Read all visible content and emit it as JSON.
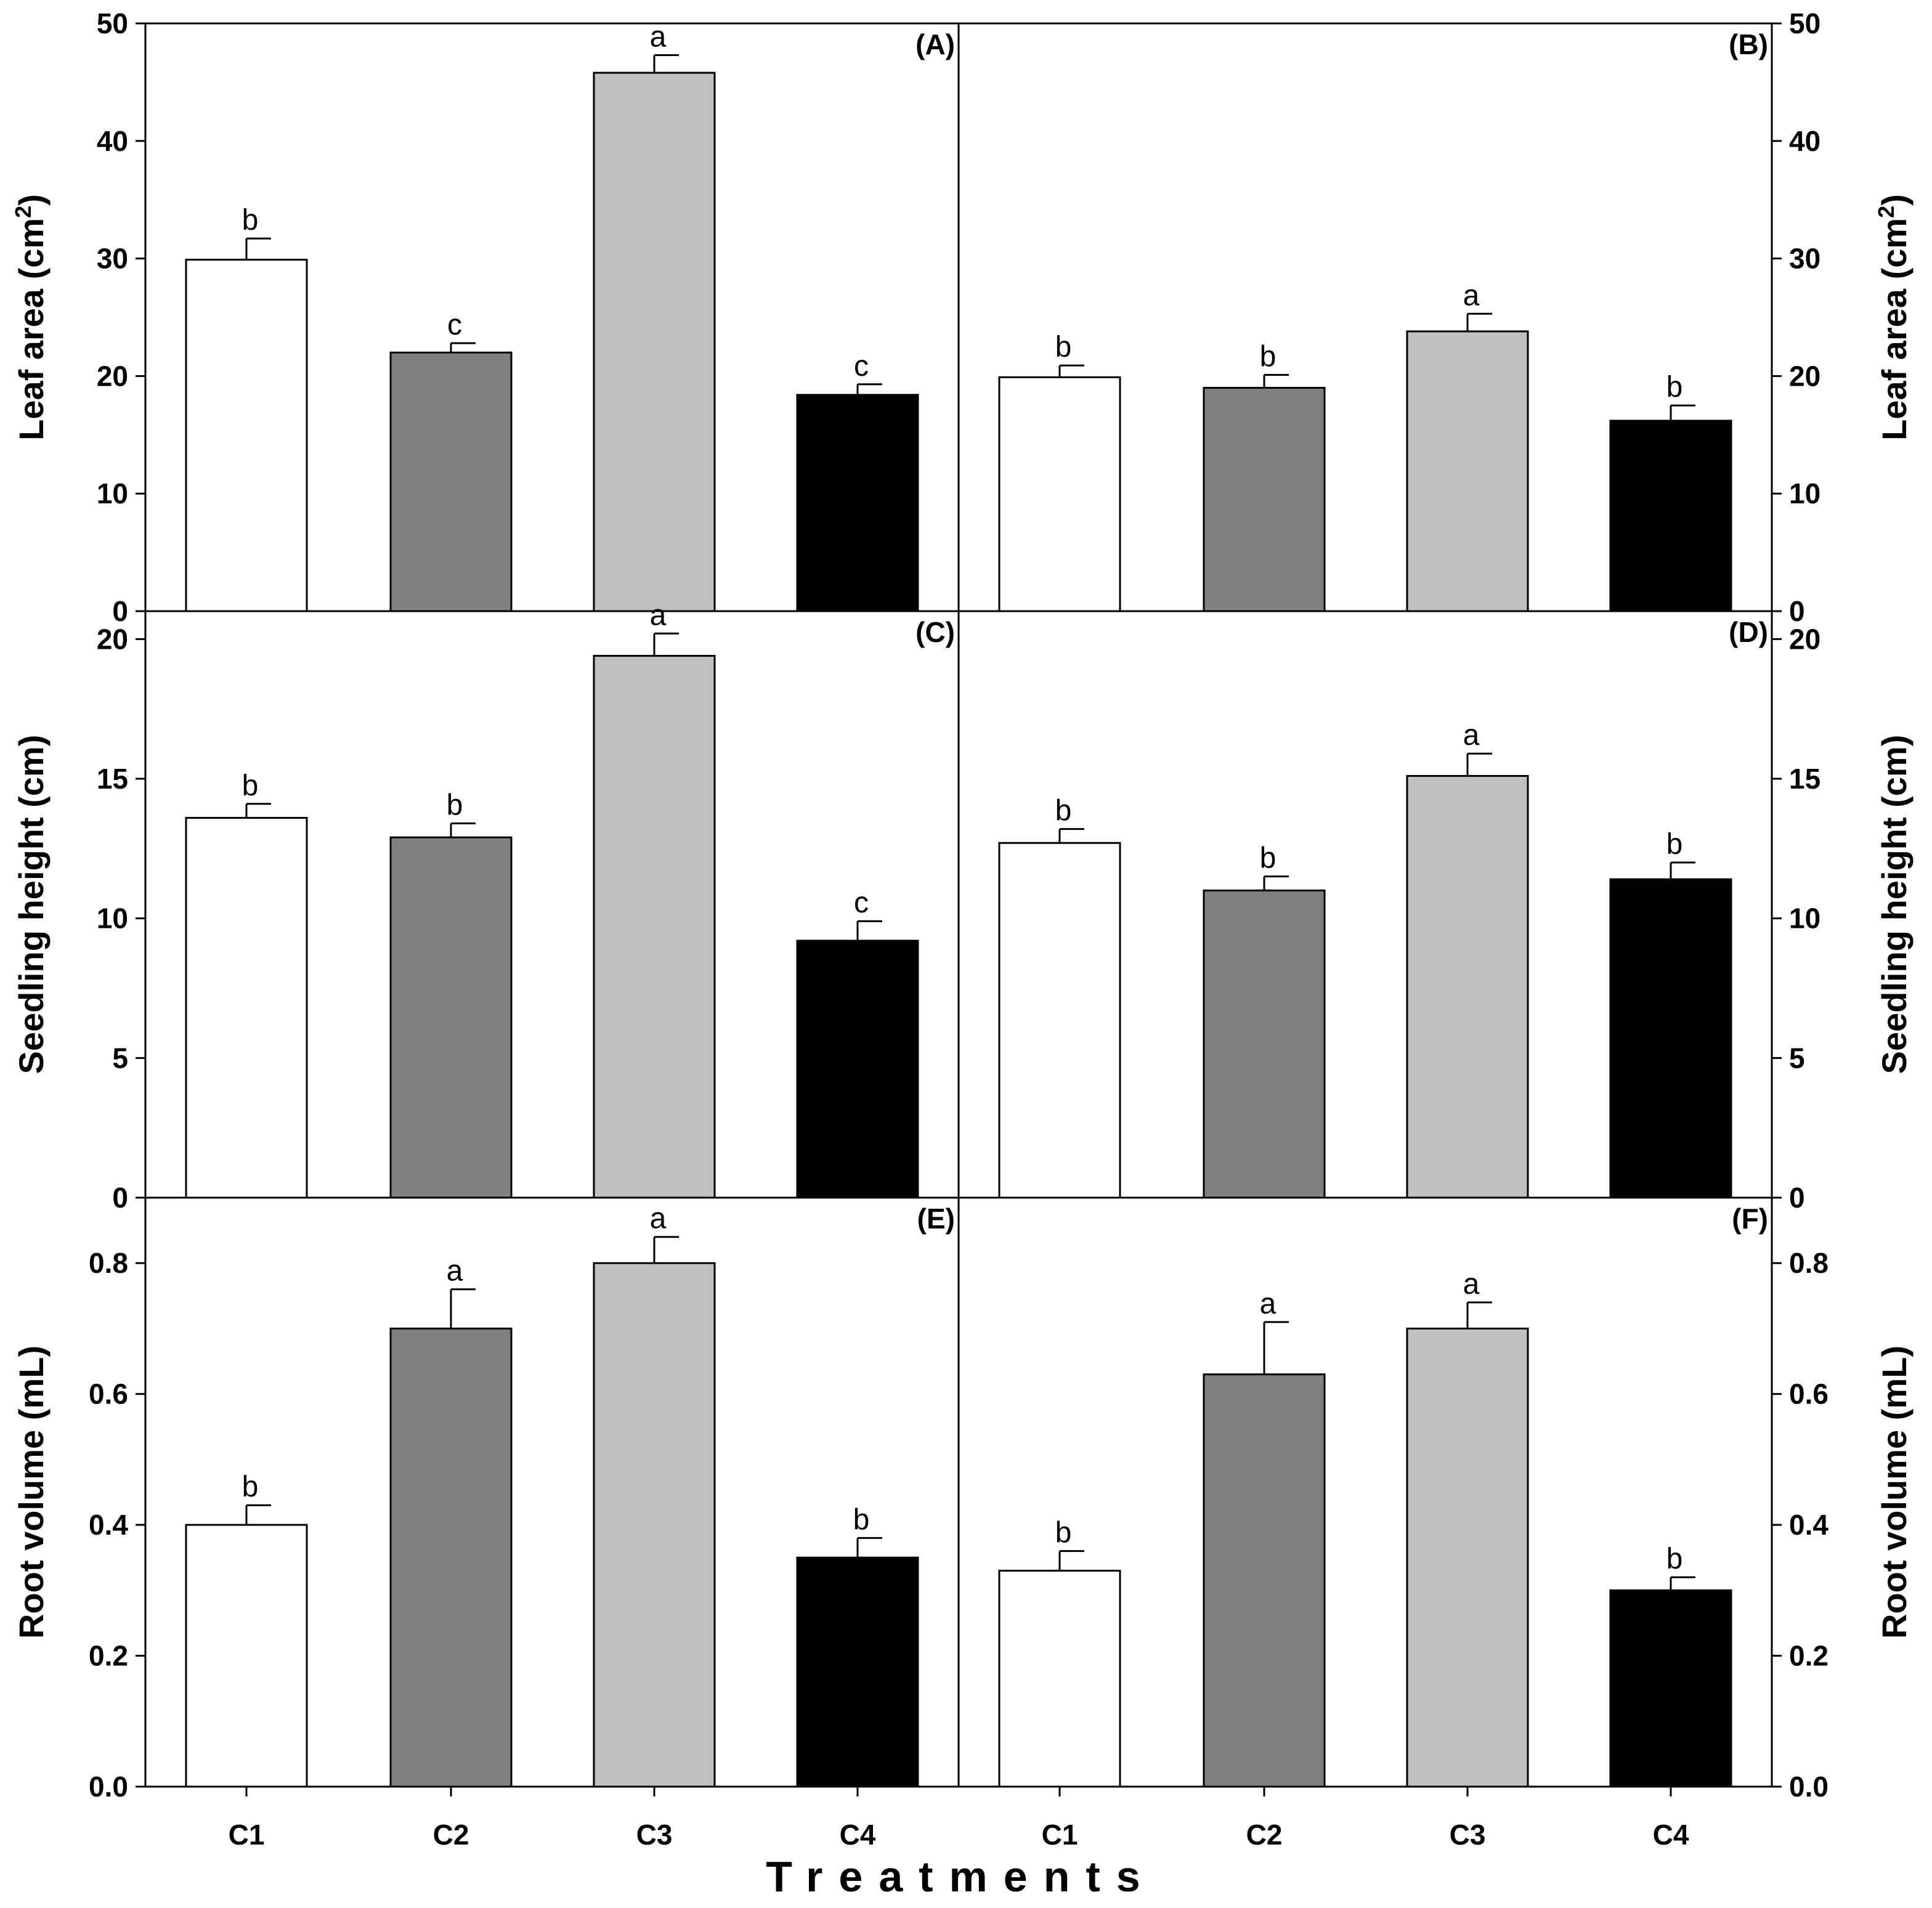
{
  "figure": {
    "x_title": "Treatments",
    "categories": [
      "C1",
      "C2",
      "C3",
      "C4"
    ],
    "bar_colors": [
      "#ffffff",
      "#808080",
      "#c0c0c0",
      "#000000"
    ]
  },
  "chart_data": [
    {
      "type": "bar",
      "panel": "(A)",
      "ylabel": "Leaf area (cm2)",
      "ylim": [
        0,
        50
      ],
      "yticks": [
        "0",
        "10",
        "20",
        "30",
        "40",
        "50"
      ],
      "categories": [
        "C1",
        "C2",
        "C3",
        "C4"
      ],
      "values": [
        29.9,
        22.0,
        45.8,
        18.4
      ],
      "errors": [
        1.8,
        0.8,
        1.5,
        0.9
      ],
      "letters": [
        "b",
        "c",
        "a",
        "c"
      ]
    },
    {
      "type": "bar",
      "panel": "(B)",
      "ylabel": "Leaf area (cm2)",
      "ylim": [
        0,
        50
      ],
      "yticks": [
        "0",
        "10",
        "20",
        "30",
        "40",
        "50"
      ],
      "categories": [
        "C1",
        "C2",
        "C3",
        "C4"
      ],
      "values": [
        19.9,
        19.0,
        23.8,
        16.2
      ],
      "errors": [
        1.0,
        1.1,
        1.5,
        1.3
      ],
      "letters": [
        "b",
        "b",
        "a",
        "b"
      ]
    },
    {
      "type": "bar",
      "panel": "(C)",
      "ylabel": "Seedling height (cm)",
      "ylim": [
        0,
        21
      ],
      "yticks": [
        "0",
        "5",
        "10",
        "15",
        "20"
      ],
      "categories": [
        "C1",
        "C2",
        "C3",
        "C4"
      ],
      "values": [
        13.6,
        12.9,
        19.4,
        9.2
      ],
      "errors": [
        0.5,
        0.5,
        0.8,
        0.7
      ],
      "letters": [
        "b",
        "b",
        "a",
        "c"
      ]
    },
    {
      "type": "bar",
      "panel": "(D)",
      "ylabel": "Seedling height (cm)",
      "ylim": [
        0,
        21
      ],
      "yticks": [
        "0",
        "5",
        "10",
        "15",
        "20"
      ],
      "categories": [
        "C1",
        "C2",
        "C3",
        "C4"
      ],
      "values": [
        12.7,
        11.0,
        15.1,
        11.4
      ],
      "errors": [
        0.5,
        0.5,
        0.8,
        0.6
      ],
      "letters": [
        "b",
        "b",
        "a",
        "b"
      ]
    },
    {
      "type": "bar",
      "panel": "(E)",
      "ylabel": "Root volume (mL)",
      "ylim": [
        0,
        0.9
      ],
      "yticks": [
        "0.0",
        "0.2",
        "0.4",
        "0.6",
        "0.8"
      ],
      "categories": [
        "C1",
        "C2",
        "C3",
        "C4"
      ],
      "values": [
        0.4,
        0.7,
        0.8,
        0.35
      ],
      "errors": [
        0.03,
        0.06,
        0.04,
        0.03
      ],
      "letters": [
        "b",
        "a",
        "a",
        "b"
      ]
    },
    {
      "type": "bar",
      "panel": "(F)",
      "ylabel": "Root volume (mL)",
      "ylim": [
        0,
        0.9
      ],
      "yticks": [
        "0.0",
        "0.2",
        "0.4",
        "0.6",
        "0.8"
      ],
      "categories": [
        "C1",
        "C2",
        "C3",
        "C4"
      ],
      "values": [
        0.33,
        0.63,
        0.7,
        0.3
      ],
      "errors": [
        0.03,
        0.08,
        0.04,
        0.02
      ],
      "letters": [
        "b",
        "a",
        "a",
        "b"
      ]
    }
  ]
}
